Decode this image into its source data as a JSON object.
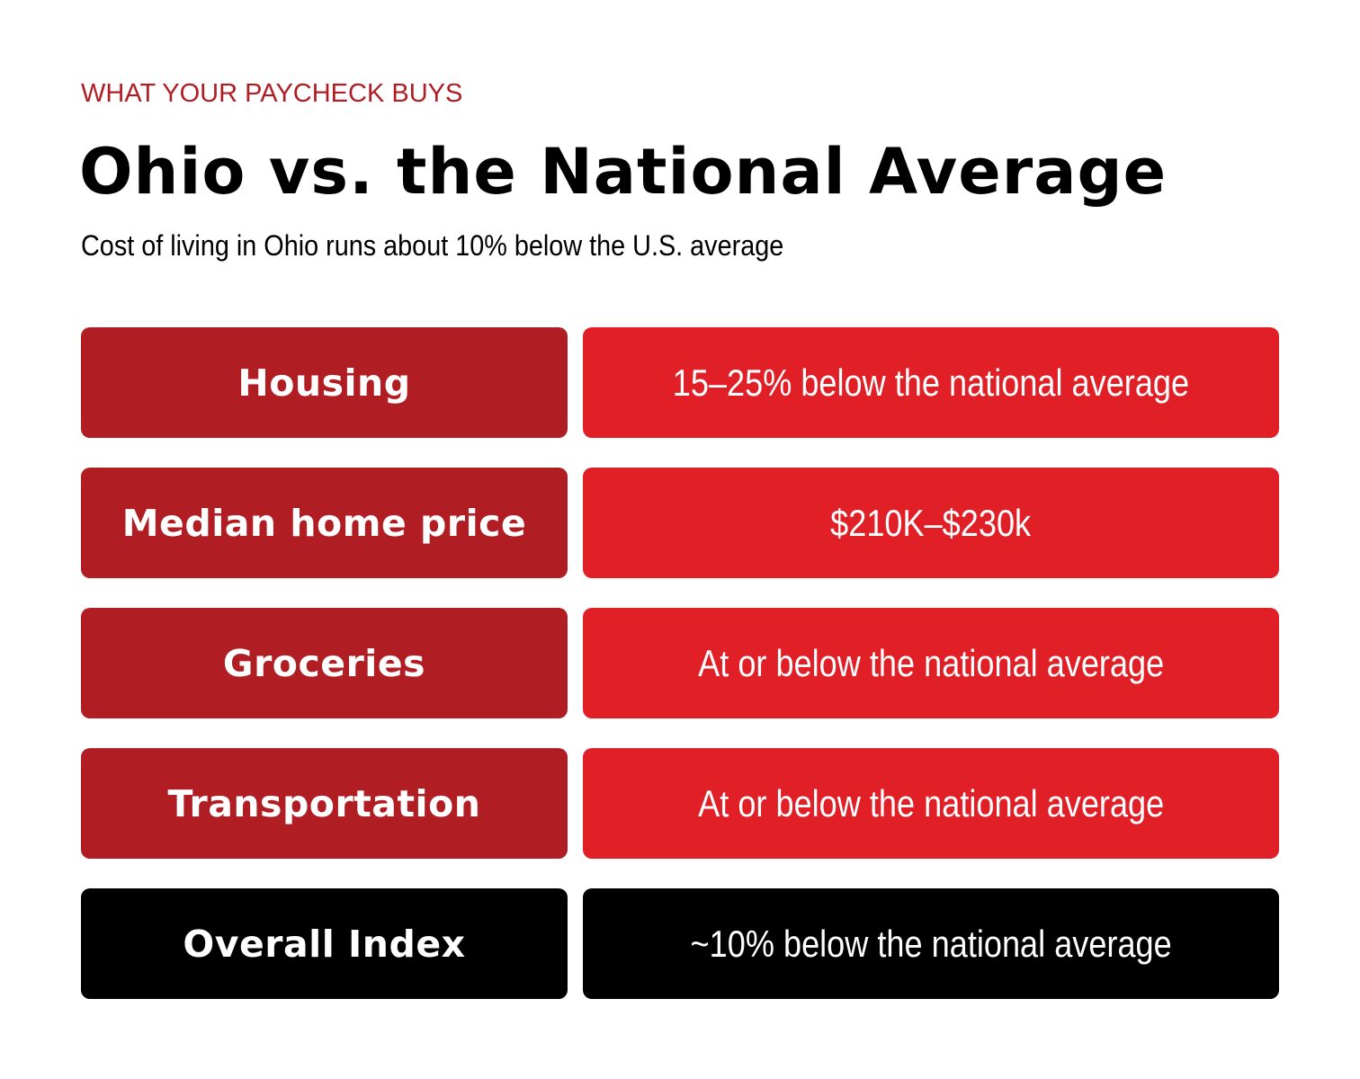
{
  "header": {
    "eyebrow": "WHAT YOUR PAYCHECK BUYS",
    "title": "Ohio vs. the National Average",
    "subtitle": "Cost of living in Ohio runs about 10% below the U.S. average"
  },
  "rows": [
    {
      "label": "Housing",
      "value": "15–25% below the national average"
    },
    {
      "label": "Median home price",
      "value": "$210K–$230k"
    },
    {
      "label": "Groceries",
      "value": "At or below the national average"
    },
    {
      "label": "Transportation",
      "value": "At or below the national average"
    },
    {
      "label": "Overall Index",
      "value": "~10% below the national average"
    }
  ],
  "colors": {
    "accent_text": "#b01e24",
    "label_bg": "#b01e24",
    "value_bg": "#e01f27",
    "summary_bg": "#000000",
    "cell_text": "#ffffff"
  }
}
